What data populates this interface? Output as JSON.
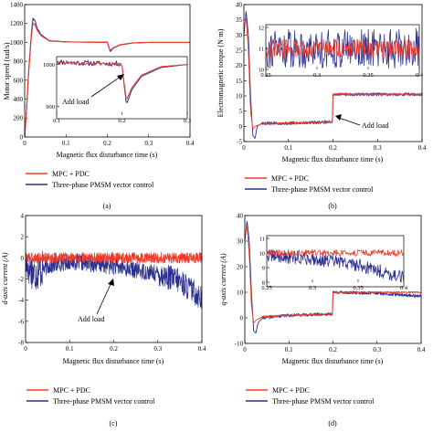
{
  "colors": {
    "red": "#ef3b2c",
    "blue": "#2b2f8f",
    "axis": "#000000"
  },
  "chart_data": [
    {
      "type": "line",
      "panel_label": "(a)",
      "xlabel": "Magnetic flux disturbance time (s)",
      "ylabel": "Motor speed (rad/s)",
      "xlim": [
        0,
        0.4
      ],
      "ylim": [
        0,
        1400
      ],
      "xticks": [
        0,
        0.1,
        0.2,
        0.3,
        0.4
      ],
      "yticks": [
        0,
        200,
        400,
        600,
        800,
        1000,
        1200,
        1400
      ],
      "tick_labels_x": [
        "0",
        "0.1",
        "0.2",
        "0.3",
        "0.4"
      ],
      "tick_labels_y": [
        "0",
        "200",
        "400",
        "600",
        "800",
        "1000",
        "1200",
        "1400"
      ],
      "series": [
        {
          "name": "MPC + PDC",
          "x": [
            0,
            0.004,
            0.01,
            0.016,
            0.02,
            0.025,
            0.03,
            0.04,
            0.06,
            0.1,
            0.15,
            0.195,
            0.2,
            0.203,
            0.207,
            0.215,
            0.23,
            0.26,
            0.3,
            0.35,
            0.4
          ],
          "y": [
            0,
            250,
            700,
            1050,
            1200,
            1190,
            1130,
            1070,
            1015,
            1005,
            1002,
            1000,
            1000,
            960,
            915,
            945,
            975,
            995,
            1000,
            1000,
            1000
          ]
        },
        {
          "name": "Three-phase PMSM vector control",
          "x": [
            0,
            0.004,
            0.01,
            0.016,
            0.02,
            0.025,
            0.03,
            0.04,
            0.06,
            0.1,
            0.15,
            0.195,
            0.2,
            0.203,
            0.207,
            0.215,
            0.23,
            0.26,
            0.3,
            0.35,
            0.4
          ],
          "y": [
            0,
            260,
            720,
            1080,
            1255,
            1230,
            1150,
            1080,
            1018,
            1006,
            1003,
            1002,
            1002,
            955,
            905,
            940,
            972,
            993,
            1000,
            1000,
            1000
          ]
        }
      ],
      "inset": {
        "xlim": [
          0.1,
          0.3
        ],
        "ylim": [
          880,
          1010
        ],
        "xticks": [
          0.1,
          0.2,
          0.3
        ],
        "yticks": [
          900,
          1000
        ],
        "tick_labels_x": [
          "0.1",
          "0.2",
          "0.3"
        ],
        "tick_labels_y": [
          "900",
          "1000"
        ]
      },
      "annotation": "Add load",
      "legend": "bottom-left"
    },
    {
      "type": "line",
      "panel_label": "(b)",
      "xlabel": "Magnetic flux disturbance time (s)",
      "ylabel": "Electromagnetic torque (N·m)",
      "xlim": [
        0,
        0.4
      ],
      "ylim": [
        -5,
        40
      ],
      "xticks": [
        0,
        0.1,
        0.2,
        0.3,
        0.4
      ],
      "yticks": [
        -5,
        0,
        5,
        10,
        15,
        20,
        25,
        30,
        35,
        40
      ],
      "tick_labels_x": [
        "0",
        "0.1",
        "0.2",
        "0.3",
        "0.4"
      ],
      "tick_labels_y": [
        "-5",
        "0",
        "5",
        "10",
        "15",
        "20",
        "25",
        "30",
        "35",
        "40"
      ],
      "series": [
        {
          "name": "MPC + PDC",
          "x": [
            0,
            0.005,
            0.01,
            0.015,
            0.02,
            0.025,
            0.04,
            0.1,
            0.199,
            0.2,
            0.4
          ],
          "y": [
            32,
            36,
            25,
            5,
            -1,
            0,
            0.8,
            1,
            1.5,
            10.5,
            10.5
          ]
        },
        {
          "name": "Three-phase PMSM vector control",
          "x": [
            0,
            0.005,
            0.01,
            0.015,
            0.02,
            0.025,
            0.03,
            0.04,
            0.1,
            0.199,
            0.2,
            0.4
          ],
          "y": [
            30,
            38,
            30,
            10,
            -3,
            -4,
            0,
            1,
            1,
            1.5,
            10.5,
            10.5
          ]
        }
      ],
      "inset": {
        "xlim": [
          0.25,
          0.4
        ],
        "ylim": [
          10,
          12
        ],
        "xticks": [
          0.25,
          0.3,
          0.35,
          0.4
        ],
        "yticks": [
          10,
          11,
          12
        ],
        "tick_labels_x": [
          "0.25",
          "0.3",
          "0.35",
          "0.4"
        ],
        "tick_labels_y": [
          "10",
          "11",
          "12"
        ]
      },
      "annotation": "Add load",
      "legend": "bottom-left"
    },
    {
      "type": "line",
      "panel_label": "(c)",
      "xlabel": "Magnetic flux disturbance time (s)",
      "ylabel": "d-axis current (A)",
      "xlim": [
        0,
        0.4
      ],
      "ylim": [
        -8,
        4
      ],
      "xticks": [
        0,
        0.1,
        0.2,
        0.3,
        0.4
      ],
      "yticks": [
        -8,
        -6,
        -4,
        -2,
        0,
        2,
        4
      ],
      "tick_labels_x": [
        "0",
        "0.1",
        "0.2",
        "0.3",
        "0.4"
      ],
      "tick_labels_y": [
        "-8",
        "-6",
        "-4",
        "-2",
        "0",
        "2",
        "4"
      ],
      "series": [
        {
          "name": "MPC + PDC",
          "x": [
            0,
            0.4
          ],
          "y": [
            0,
            0
          ]
        },
        {
          "name": "Three-phase PMSM vector control",
          "x": [
            0,
            0.02,
            0.05,
            0.1,
            0.2,
            0.3,
            0.35,
            0.4
          ],
          "y": [
            -0.5,
            -1.5,
            -0.8,
            -0.3,
            -0.8,
            -1.5,
            -2.2,
            -3.8
          ]
        }
      ],
      "annotation": "Add load",
      "legend": "bottom-left"
    },
    {
      "type": "line",
      "panel_label": "(d)",
      "xlabel": "Magnetic flux disturbance time (s)",
      "ylabel": "q-axis current (A)",
      "xlim": [
        0,
        0.4
      ],
      "ylim": [
        -10,
        40
      ],
      "xticks": [
        0,
        0.1,
        0.2,
        0.3,
        0.4
      ],
      "yticks": [
        -10,
        0,
        10,
        20,
        30,
        40
      ],
      "tick_labels_x": [
        "0",
        "0.1",
        "0.2",
        "0.3",
        "0.4"
      ],
      "tick_labels_y": [
        "-10",
        "0",
        "10",
        "20",
        "30",
        "40"
      ],
      "series": [
        {
          "name": "MPC + PDC",
          "x": [
            0,
            0.005,
            0.01,
            0.015,
            0.02,
            0.025,
            0.04,
            0.1,
            0.199,
            0.2,
            0.4
          ],
          "y": [
            32,
            36,
            25,
            5,
            -2,
            -1,
            0.5,
            1,
            1.5,
            10,
            10
          ]
        },
        {
          "name": "Three-phase PMSM vector control",
          "x": [
            0,
            0.005,
            0.01,
            0.015,
            0.02,
            0.025,
            0.03,
            0.04,
            0.1,
            0.199,
            0.2,
            0.3,
            0.4
          ],
          "y": [
            30,
            38,
            30,
            10,
            -5,
            -6,
            -2,
            0,
            1,
            1.5,
            10,
            9.6,
            8.5
          ]
        }
      ],
      "inset": {
        "xlim": [
          0.25,
          0.4
        ],
        "ylim": [
          8,
          11
        ],
        "xticks": [
          0.25,
          0.3,
          0.35,
          0.4
        ],
        "yticks": [
          8,
          9,
          10,
          11
        ],
        "tick_labels_x": [
          "0.25",
          "0.3",
          "0.35",
          "0.4"
        ],
        "tick_labels_y": [
          "8",
          "9",
          "10",
          "11"
        ]
      },
      "legend": "bottom-left"
    }
  ]
}
